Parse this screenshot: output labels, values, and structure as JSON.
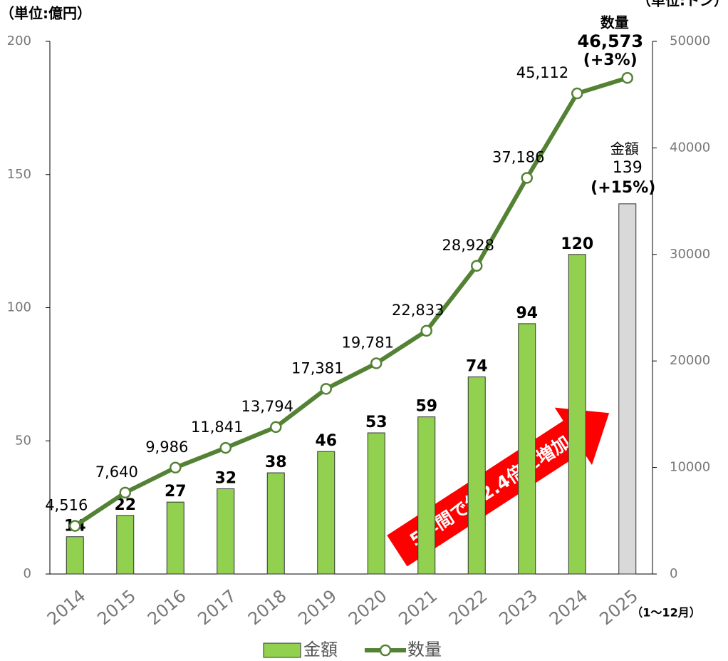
{
  "chart_data": {
    "type": "bar_line",
    "annotations": {
      "y_unit": "（単位:億円）",
      "y2_unit": "（単位:トン）",
      "x_note": "（1～12月）",
      "bar_last_name": "金額",
      "bar_last_change": "(+15%)",
      "line_last_name": "数量",
      "line_last_change": "(+3%)",
      "arrow": "5年間で約2.4倍に増加"
    },
    "categories": [
      "2014",
      "2015",
      "2016",
      "2017",
      "2018",
      "2019",
      "2020",
      "2021",
      "2022",
      "2023",
      "2024",
      "2025"
    ],
    "series": [
      {
        "name": "金額",
        "type": "bar",
        "color": "#92d050",
        "colors": [
          "#92d050",
          "#92d050",
          "#92d050",
          "#92d050",
          "#92d050",
          "#92d050",
          "#92d050",
          "#92d050",
          "#92d050",
          "#92d050",
          "#92d050",
          "#d9d9d9"
        ],
        "values": [
          14,
          22,
          27,
          32,
          38,
          46,
          53,
          59,
          74,
          94,
          120,
          139
        ]
      },
      {
        "name": "数量",
        "type": "line",
        "axis": "y2",
        "color": "#548235",
        "values": [
          4516,
          7640,
          9986,
          11841,
          13794,
          17381,
          19781,
          22833,
          28928,
          37186,
          45112,
          46573
        ],
        "value_labels": [
          "4,516",
          "7,640",
          "9,986",
          "11,841",
          "13,794",
          "17,381",
          "19,781",
          "22,833",
          "28,928",
          "37,186",
          "45,112",
          "46,573"
        ]
      }
    ],
    "ylim": [
      0,
      200
    ],
    "yticks": [
      0,
      50,
      100,
      150,
      200
    ],
    "y2lim": [
      0,
      50000
    ],
    "y2ticks": [
      0,
      10000,
      20000,
      30000,
      40000,
      50000
    ]
  }
}
